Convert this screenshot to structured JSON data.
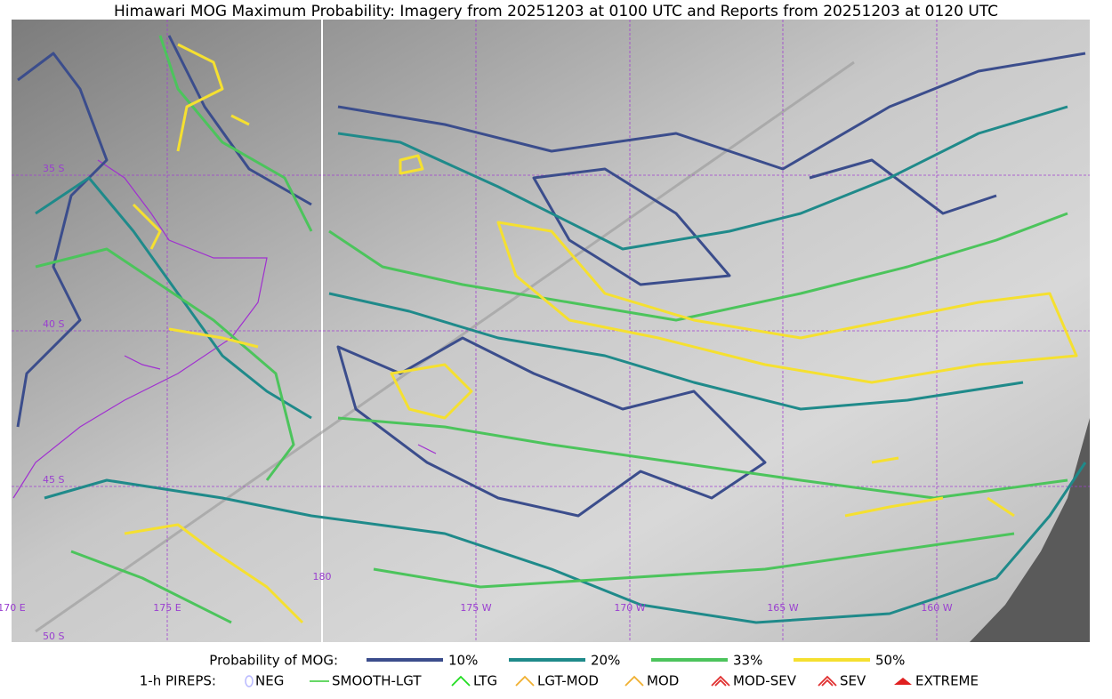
{
  "title": "Himawari MOG Maximum Probability: Imagery from 20251203 at 0100 UTC and Reports from 20251203 at 0120 UTC",
  "map": {
    "lat_labels": [
      "35 S",
      "40 S",
      "45 S",
      "50 S"
    ],
    "lon_labels": [
      "170 E",
      "175 E",
      "180",
      "175 W",
      "170 W",
      "165 W",
      "160 W"
    ]
  },
  "legend": {
    "probability": {
      "label": "Probability of MOG:",
      "items": [
        {
          "name": "10%",
          "color": "#3b4d8c"
        },
        {
          "name": "20%",
          "color": "#1f8a8a"
        },
        {
          "name": "33%",
          "color": "#4cc45c"
        },
        {
          "name": "50%",
          "color": "#f5e030"
        }
      ]
    },
    "pireps": {
      "label": "1-h PIREPS:",
      "items": [
        {
          "name": "NEG",
          "color": "#b8b8ff"
        },
        {
          "name": "SMOOTH-LGT",
          "color": "#33cc33"
        },
        {
          "name": "LTG",
          "color": "#22dd22"
        },
        {
          "name": "LGT-MOD",
          "color": "#f0b030"
        },
        {
          "name": "MOD",
          "color": "#f0b030"
        },
        {
          "name": "MOD-SEV",
          "color": "#e03030"
        },
        {
          "name": "SEV",
          "color": "#e03030"
        },
        {
          "name": "EXTREME",
          "color": "#e02020"
        }
      ]
    }
  }
}
